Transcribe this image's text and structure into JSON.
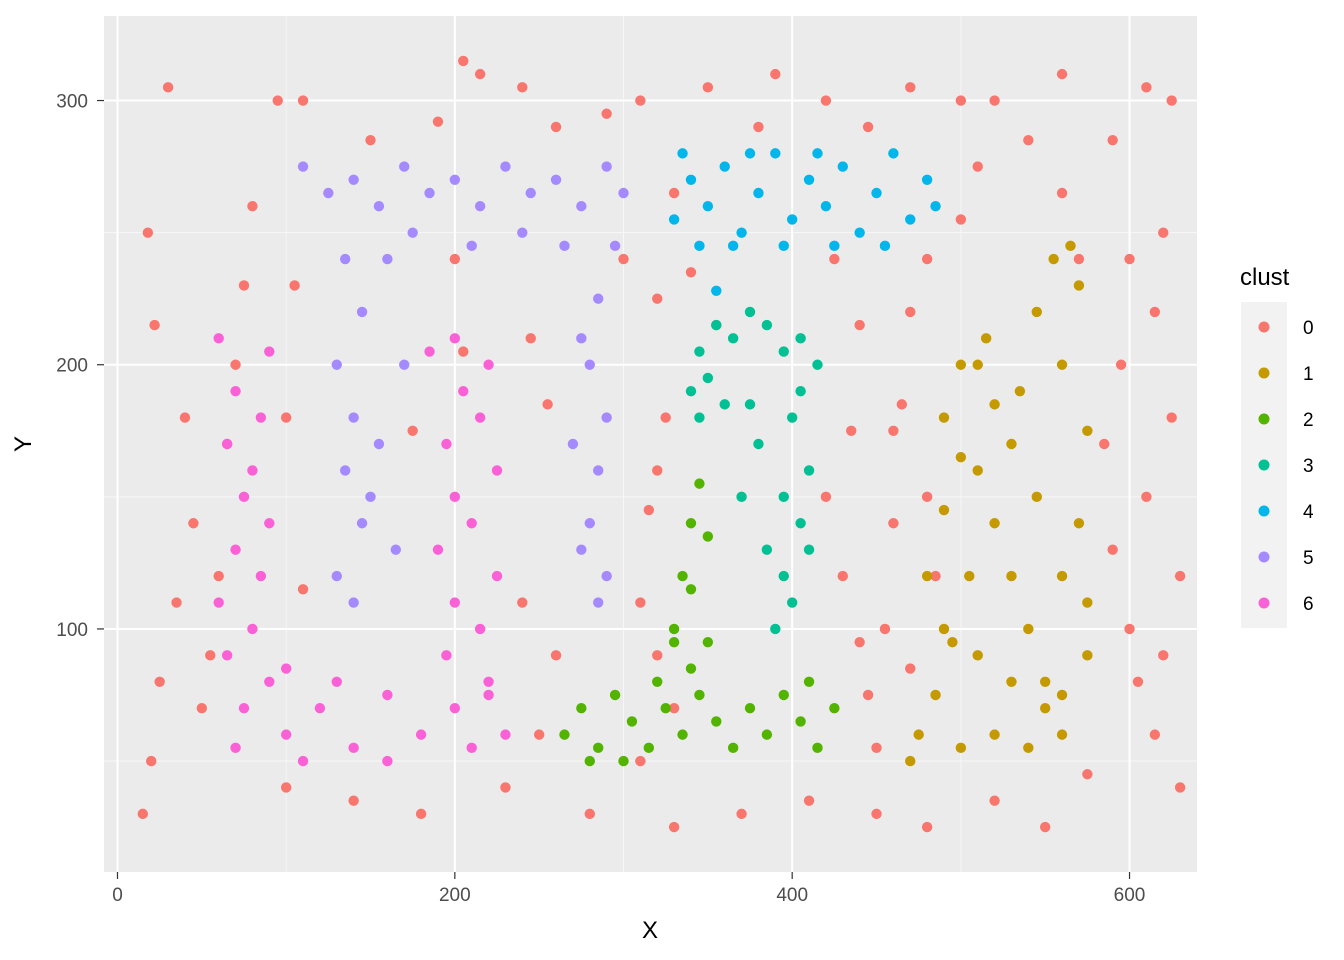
{
  "chart_data": {
    "type": "scatter",
    "title": "",
    "xlabel": "X",
    "ylabel": "Y",
    "xlim": [
      -8,
      640
    ],
    "ylim": [
      8,
      332
    ],
    "x_ticks": [
      0,
      200,
      400,
      600
    ],
    "y_ticks": [
      100,
      200,
      300
    ],
    "grid": true,
    "legend_title": "clust",
    "legend_position": "right",
    "series": [
      {
        "name": "0",
        "color": "#F8766D",
        "points": [
          [
            30,
            305
          ],
          [
            95,
            300
          ],
          [
            205,
            315
          ],
          [
            215,
            310
          ],
          [
            240,
            305
          ],
          [
            310,
            300
          ],
          [
            350,
            305
          ],
          [
            390,
            310
          ],
          [
            420,
            300
          ],
          [
            470,
            305
          ],
          [
            520,
            300
          ],
          [
            560,
            310
          ],
          [
            610,
            305
          ],
          [
            625,
            300
          ],
          [
            18,
            250
          ],
          [
            22,
            215
          ],
          [
            40,
            180
          ],
          [
            45,
            140
          ],
          [
            35,
            110
          ],
          [
            25,
            80
          ],
          [
            20,
            50
          ],
          [
            15,
            30
          ],
          [
            60,
            120
          ],
          [
            55,
            90
          ],
          [
            50,
            70
          ],
          [
            620,
            250
          ],
          [
            615,
            220
          ],
          [
            625,
            180
          ],
          [
            610,
            150
          ],
          [
            630,
            120
          ],
          [
            620,
            90
          ],
          [
            615,
            60
          ],
          [
            630,
            40
          ],
          [
            600,
            240
          ],
          [
            595,
            200
          ],
          [
            585,
            170
          ],
          [
            590,
            130
          ],
          [
            600,
            100
          ],
          [
            605,
            80
          ],
          [
            110,
            115
          ],
          [
            240,
            110
          ],
          [
            255,
            185
          ],
          [
            245,
            210
          ],
          [
            300,
            240
          ],
          [
            320,
            225
          ],
          [
            325,
            180
          ],
          [
            315,
            145
          ],
          [
            310,
            110
          ],
          [
            320,
            90
          ],
          [
            330,
            70
          ],
          [
            420,
            150
          ],
          [
            430,
            120
          ],
          [
            440,
            95
          ],
          [
            445,
            75
          ],
          [
            450,
            55
          ],
          [
            455,
            100
          ],
          [
            460,
            140
          ],
          [
            465,
            185
          ],
          [
            470,
            220
          ],
          [
            480,
            240
          ],
          [
            500,
            255
          ],
          [
            510,
            275
          ],
          [
            540,
            285
          ],
          [
            560,
            265
          ],
          [
            570,
            240
          ],
          [
            100,
            40
          ],
          [
            140,
            35
          ],
          [
            180,
            30
          ],
          [
            230,
            40
          ],
          [
            280,
            30
          ],
          [
            330,
            25
          ],
          [
            370,
            30
          ],
          [
            410,
            35
          ],
          [
            450,
            30
          ],
          [
            480,
            25
          ],
          [
            520,
            35
          ],
          [
            550,
            25
          ],
          [
            575,
            45
          ],
          [
            80,
            260
          ],
          [
            75,
            230
          ],
          [
            70,
            200
          ],
          [
            65,
            170
          ],
          [
            100,
            180
          ],
          [
            105,
            230
          ],
          [
            310,
            50
          ],
          [
            250,
            60
          ],
          [
            260,
            90
          ],
          [
            320,
            160
          ],
          [
            110,
            300
          ],
          [
            150,
            285
          ],
          [
            190,
            292
          ],
          [
            260,
            290
          ],
          [
            290,
            295
          ],
          [
            380,
            290
          ],
          [
            445,
            290
          ],
          [
            500,
            300
          ],
          [
            590,
            285
          ],
          [
            200,
            240
          ],
          [
            175,
            175
          ],
          [
            205,
            205
          ],
          [
            330,
            265
          ],
          [
            340,
            235
          ],
          [
            355,
            215
          ],
          [
            425,
            240
          ],
          [
            440,
            215
          ],
          [
            435,
            175
          ],
          [
            460,
            175
          ],
          [
            480,
            150
          ],
          [
            485,
            120
          ],
          [
            470,
            85
          ]
        ]
      },
      {
        "name": "1",
        "color": "#C49A00",
        "points": [
          [
            490,
            180
          ],
          [
            500,
            200
          ],
          [
            510,
            160
          ],
          [
            520,
            140
          ],
          [
            530,
            120
          ],
          [
            540,
            100
          ],
          [
            550,
            80
          ],
          [
            560,
            60
          ],
          [
            570,
            140
          ],
          [
            575,
            175
          ],
          [
            560,
            200
          ],
          [
            545,
            220
          ],
          [
            555,
            240
          ],
          [
            565,
            245
          ],
          [
            570,
            230
          ],
          [
            535,
            190
          ],
          [
            515,
            210
          ],
          [
            505,
            120
          ],
          [
            495,
            95
          ],
          [
            485,
            75
          ],
          [
            475,
            60
          ],
          [
            470,
            50
          ],
          [
            500,
            55
          ],
          [
            520,
            60
          ],
          [
            540,
            55
          ],
          [
            560,
            75
          ],
          [
            575,
            90
          ],
          [
            575,
            110
          ],
          [
            560,
            120
          ],
          [
            545,
            150
          ],
          [
            530,
            170
          ],
          [
            520,
            185
          ],
          [
            510,
            200
          ],
          [
            500,
            165
          ],
          [
            490,
            145
          ],
          [
            480,
            120
          ],
          [
            490,
            100
          ],
          [
            510,
            90
          ],
          [
            530,
            80
          ],
          [
            550,
            70
          ]
        ]
      },
      {
        "name": "2",
        "color": "#53B400",
        "points": [
          [
            265,
            60
          ],
          [
            275,
            70
          ],
          [
            285,
            55
          ],
          [
            295,
            75
          ],
          [
            305,
            65
          ],
          [
            315,
            55
          ],
          [
            325,
            70
          ],
          [
            335,
            60
          ],
          [
            345,
            75
          ],
          [
            355,
            65
          ],
          [
            365,
            55
          ],
          [
            375,
            70
          ],
          [
            385,
            60
          ],
          [
            395,
            75
          ],
          [
            405,
            65
          ],
          [
            415,
            55
          ],
          [
            425,
            70
          ],
          [
            330,
            100
          ],
          [
            335,
            120
          ],
          [
            340,
            140
          ],
          [
            345,
            155
          ],
          [
            350,
            135
          ],
          [
            340,
            115
          ],
          [
            330,
            95
          ],
          [
            340,
            85
          ],
          [
            350,
            95
          ],
          [
            320,
            80
          ],
          [
            300,
            50
          ],
          [
            280,
            50
          ],
          [
            410,
            80
          ]
        ]
      },
      {
        "name": "3",
        "color": "#00C094",
        "points": [
          [
            345,
            205
          ],
          [
            355,
            215
          ],
          [
            365,
            210
          ],
          [
            375,
            220
          ],
          [
            385,
            215
          ],
          [
            395,
            205
          ],
          [
            405,
            210
          ],
          [
            415,
            200
          ],
          [
            400,
            180
          ],
          [
            410,
            160
          ],
          [
            405,
            140
          ],
          [
            395,
            120
          ],
          [
            390,
            100
          ],
          [
            400,
            110
          ],
          [
            410,
            130
          ],
          [
            380,
            170
          ],
          [
            370,
            150
          ],
          [
            385,
            130
          ],
          [
            395,
            150
          ],
          [
            405,
            190
          ],
          [
            360,
            185
          ],
          [
            350,
            195
          ],
          [
            340,
            190
          ],
          [
            345,
            180
          ],
          [
            375,
            185
          ]
        ]
      },
      {
        "name": "4",
        "color": "#00B6EB",
        "points": [
          [
            330,
            255
          ],
          [
            340,
            270
          ],
          [
            350,
            260
          ],
          [
            360,
            275
          ],
          [
            370,
            250
          ],
          [
            380,
            265
          ],
          [
            390,
            280
          ],
          [
            400,
            255
          ],
          [
            410,
            270
          ],
          [
            420,
            260
          ],
          [
            430,
            275
          ],
          [
            440,
            250
          ],
          [
            450,
            265
          ],
          [
            460,
            280
          ],
          [
            470,
            255
          ],
          [
            480,
            270
          ],
          [
            485,
            260
          ],
          [
            345,
            245
          ],
          [
            365,
            245
          ],
          [
            395,
            245
          ],
          [
            425,
            245
          ],
          [
            455,
            245
          ],
          [
            335,
            280
          ],
          [
            375,
            280
          ],
          [
            415,
            280
          ],
          [
            355,
            228
          ]
        ]
      },
      {
        "name": "5",
        "color": "#A58AFF",
        "points": [
          [
            110,
            275
          ],
          [
            125,
            265
          ],
          [
            140,
            270
          ],
          [
            155,
            260
          ],
          [
            170,
            275
          ],
          [
            185,
            265
          ],
          [
            200,
            270
          ],
          [
            215,
            260
          ],
          [
            230,
            275
          ],
          [
            245,
            265
          ],
          [
            260,
            270
          ],
          [
            275,
            260
          ],
          [
            290,
            275
          ],
          [
            300,
            265
          ],
          [
            295,
            245
          ],
          [
            285,
            225
          ],
          [
            280,
            200
          ],
          [
            290,
            180
          ],
          [
            285,
            160
          ],
          [
            280,
            140
          ],
          [
            290,
            120
          ],
          [
            285,
            110
          ],
          [
            275,
            130
          ],
          [
            135,
            240
          ],
          [
            145,
            220
          ],
          [
            130,
            200
          ],
          [
            140,
            180
          ],
          [
            135,
            160
          ],
          [
            145,
            140
          ],
          [
            130,
            120
          ],
          [
            140,
            110
          ],
          [
            160,
            240
          ],
          [
            170,
            200
          ],
          [
            155,
            170
          ],
          [
            165,
            130
          ],
          [
            175,
            250
          ],
          [
            210,
            245
          ],
          [
            240,
            250
          ],
          [
            265,
            245
          ],
          [
            275,
            210
          ],
          [
            270,
            170
          ],
          [
            150,
            150
          ]
        ]
      },
      {
        "name": "6",
        "color": "#FB61D7",
        "points": [
          [
            60,
            210
          ],
          [
            70,
            190
          ],
          [
            65,
            170
          ],
          [
            75,
            150
          ],
          [
            70,
            130
          ],
          [
            60,
            110
          ],
          [
            65,
            90
          ],
          [
            75,
            70
          ],
          [
            70,
            55
          ],
          [
            90,
            205
          ],
          [
            85,
            180
          ],
          [
            80,
            160
          ],
          [
            90,
            140
          ],
          [
            85,
            120
          ],
          [
            80,
            100
          ],
          [
            90,
            80
          ],
          [
            100,
            60
          ],
          [
            120,
            70
          ],
          [
            140,
            55
          ],
          [
            160,
            75
          ],
          [
            180,
            60
          ],
          [
            200,
            70
          ],
          [
            210,
            55
          ],
          [
            220,
            75
          ],
          [
            195,
            90
          ],
          [
            200,
            110
          ],
          [
            190,
            130
          ],
          [
            200,
            150
          ],
          [
            195,
            170
          ],
          [
            205,
            190
          ],
          [
            200,
            210
          ],
          [
            220,
            200
          ],
          [
            215,
            180
          ],
          [
            225,
            160
          ],
          [
            210,
            140
          ],
          [
            225,
            120
          ],
          [
            215,
            100
          ],
          [
            220,
            80
          ],
          [
            230,
            60
          ],
          [
            160,
            50
          ],
          [
            130,
            80
          ],
          [
            110,
            50
          ],
          [
            100,
            85
          ],
          [
            185,
            205
          ]
        ]
      }
    ]
  }
}
